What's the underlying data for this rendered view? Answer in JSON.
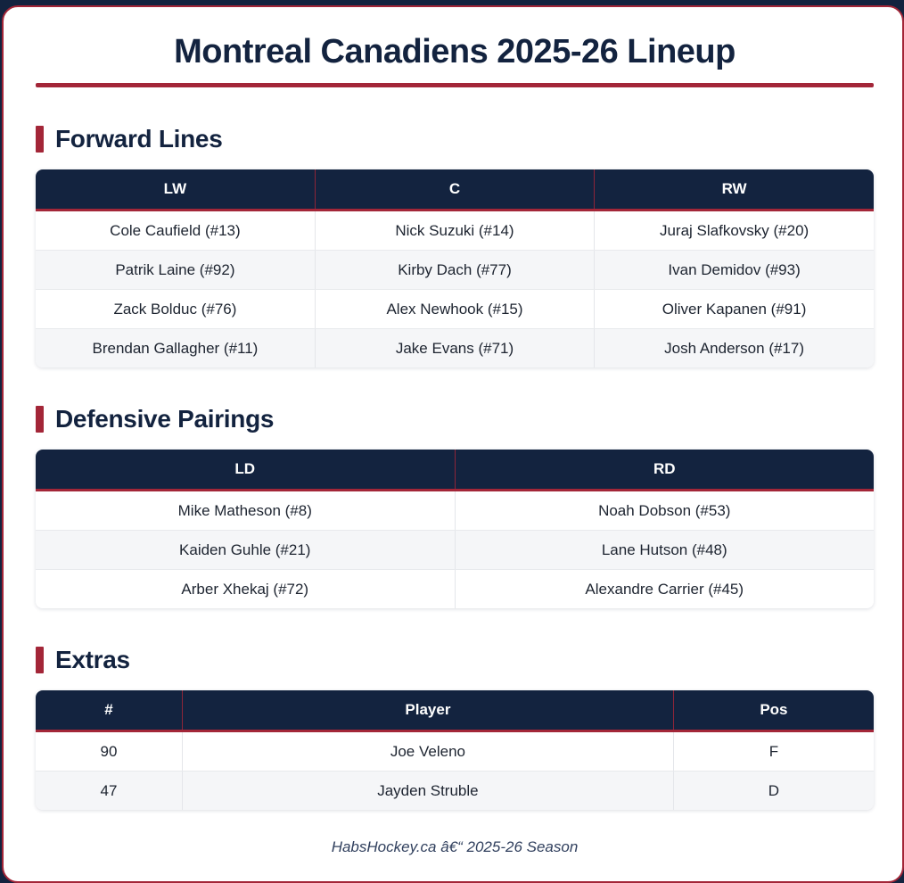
{
  "page": {
    "title": "Montreal Canadiens 2025-26 Lineup",
    "footer": "HabsHockey.ca â€“ 2025-26 Season"
  },
  "colors": {
    "navy": "#13233f",
    "accent_red": "#a32638",
    "row_alt": "#f5f6f8",
    "text_dark": "#1d2430"
  },
  "sections": [
    {
      "id": "forward-lines",
      "heading": "Forward Lines",
      "columns": [
        "LW",
        "C",
        "RW"
      ],
      "rows": [
        [
          "Cole Caufield (#13)",
          "Nick Suzuki (#14)",
          "Juraj Slafkovsky (#20)"
        ],
        [
          "Patrik Laine (#92)",
          "Kirby Dach (#77)",
          "Ivan Demidov (#93)"
        ],
        [
          "Zack Bolduc (#76)",
          "Alex Newhook (#15)",
          "Oliver Kapanen (#91)"
        ],
        [
          "Brendan Gallagher (#11)",
          "Jake Evans (#71)",
          "Josh Anderson (#17)"
        ]
      ]
    },
    {
      "id": "defensive-pairings",
      "heading": "Defensive Pairings",
      "columns": [
        "LD",
        "RD"
      ],
      "rows": [
        [
          "Mike Matheson (#8)",
          "Noah Dobson (#53)"
        ],
        [
          "Kaiden Guhle (#21)",
          "Lane Hutson (#48)"
        ],
        [
          "Arber Xhekaj (#72)",
          "Alexandre Carrier (#45)"
        ]
      ]
    },
    {
      "id": "extras",
      "heading": "Extras",
      "columns": [
        "#",
        "Player",
        "Pos"
      ],
      "rows": [
        [
          "90",
          "Joe Veleno",
          "F"
        ],
        [
          "47",
          "Jayden Struble",
          "D"
        ]
      ]
    }
  ]
}
